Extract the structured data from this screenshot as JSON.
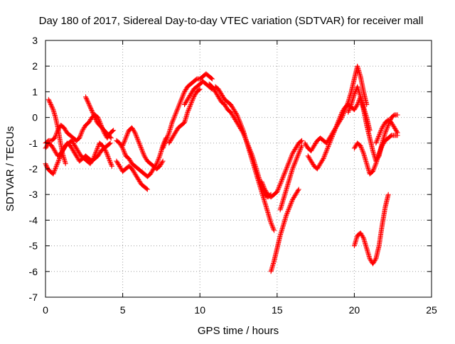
{
  "colors": {
    "series": "#ff0000",
    "grid": "#a0a0a0",
    "axis": "#000000",
    "background": "#ffffff"
  },
  "chart_data": {
    "type": "scatter",
    "title": "Day 180 of 2017, Sidereal Day-to-day VTEC variation (SDTVAR) for receiver mall",
    "xlabel": "GPS time / hours",
    "ylabel": "SDTVAR / TECUs",
    "xlim": [
      0,
      25
    ],
    "ylim": [
      -7,
      3
    ],
    "xticks": [
      0,
      5,
      10,
      15,
      20,
      25
    ],
    "yticks": [
      -7,
      -6,
      -5,
      -4,
      -3,
      -2,
      -1,
      0,
      1,
      2,
      3
    ],
    "grid": true,
    "legend": "none",
    "marker": "plus",
    "series": [
      {
        "x": [
          0.0,
          0.2,
          0.4,
          0.6,
          0.8,
          1.0,
          1.2,
          1.4,
          1.6,
          1.8,
          2.0,
          2.2,
          2.4,
          2.6,
          2.8,
          3.0,
          3.2,
          3.4,
          3.6,
          3.8,
          4.0,
          4.2,
          4.4
        ],
        "values": [
          -1.0,
          -0.9,
          -0.9,
          -0.8,
          -0.5,
          -0.3,
          -0.4,
          -0.6,
          -0.7,
          -0.8,
          -0.9,
          -0.8,
          -0.5,
          -0.3,
          -0.2,
          0.0,
          0.1,
          0.0,
          -0.3,
          -0.6,
          -0.8,
          -0.6,
          -0.5
        ]
      },
      {
        "x": [
          0.0,
          0.2,
          0.4,
          0.6,
          0.8,
          1.0,
          1.2,
          1.4,
          1.6,
          1.8,
          2.0,
          2.2,
          2.4,
          2.6,
          2.8,
          3.0,
          3.2,
          3.4,
          3.6,
          3.8,
          4.0,
          4.2
        ],
        "values": [
          -1.2,
          -1.0,
          -1.1,
          -1.3,
          -1.5,
          -1.4,
          -1.2,
          -1.0,
          -1.1,
          -1.3,
          -1.5,
          -1.7,
          -1.6,
          -1.5,
          -1.6,
          -1.7,
          -1.6,
          -1.5,
          -1.3,
          -1.2,
          -1.1,
          -1.0
        ]
      },
      {
        "x": [
          0.0,
          0.15,
          0.3,
          0.5,
          0.7,
          0.9,
          1.1,
          1.3,
          1.5,
          1.7,
          1.9,
          2.1,
          2.3,
          2.5,
          2.7,
          2.9,
          3.1,
          3.3,
          3.5,
          3.7,
          3.9,
          4.1,
          4.3
        ],
        "values": [
          -1.8,
          -2.0,
          -2.1,
          -2.2,
          -1.9,
          -1.6,
          -1.3,
          -1.1,
          -1.0,
          -0.9,
          -1.1,
          -1.3,
          -1.5,
          -1.6,
          -1.7,
          -1.8,
          -1.6,
          -1.3,
          -1.0,
          -1.1,
          -1.3,
          -1.6,
          -1.9
        ]
      },
      {
        "x": [
          0.2,
          0.35,
          0.5,
          0.65,
          0.8,
          0.95,
          1.1,
          1.3
        ],
        "values": [
          0.7,
          0.5,
          0.3,
          0.0,
          -0.4,
          -0.9,
          -1.4,
          -1.8
        ]
      },
      {
        "x": [
          2.6,
          2.75,
          2.9,
          3.05,
          3.2,
          3.35,
          3.5,
          3.65,
          3.8,
          3.95,
          4.1,
          4.25
        ],
        "values": [
          0.8,
          0.6,
          0.4,
          0.2,
          0.0,
          -0.2,
          -0.3,
          -0.4,
          -0.5,
          -0.6,
          -0.7,
          -0.8
        ]
      },
      {
        "x": [
          4.6,
          4.8,
          5.0,
          5.2,
          5.4,
          5.6,
          5.8,
          6.0,
          6.2,
          6.4,
          6.6,
          6.8,
          7.0,
          7.2,
          7.4,
          7.6,
          7.8
        ],
        "values": [
          -0.9,
          -1.0,
          -1.2,
          -1.5,
          -1.6,
          -1.8,
          -1.9,
          -2.0,
          -2.1,
          -2.2,
          -2.3,
          -2.2,
          -2.0,
          -1.8,
          -1.5,
          -1.1,
          -0.8
        ]
      },
      {
        "x": [
          4.6,
          4.8,
          5.0,
          5.2,
          5.4,
          5.6,
          5.8,
          6.0,
          6.2,
          6.4,
          6.6
        ],
        "values": [
          -1.7,
          -1.9,
          -2.1,
          -2.0,
          -1.9,
          -2.0,
          -2.2,
          -2.4,
          -2.6,
          -2.7,
          -2.8
        ]
      },
      {
        "x": [
          5.0,
          5.2,
          5.4,
          5.6,
          5.8,
          6.0,
          6.2,
          6.4,
          6.6,
          6.8,
          7.0,
          7.2,
          7.4,
          7.6
        ],
        "values": [
          -1.1,
          -0.8,
          -0.5,
          -0.4,
          -0.6,
          -0.9,
          -1.2,
          -1.5,
          -1.7,
          -1.8,
          -1.9,
          -2.0,
          -1.9,
          -1.7
        ]
      },
      {
        "x": [
          7.6,
          7.8,
          8.0,
          8.2,
          8.4,
          8.6,
          8.8,
          9.0,
          9.2,
          9.4,
          9.6,
          9.8,
          10.0,
          10.2,
          10.4,
          10.6,
          10.8
        ],
        "values": [
          -1.2,
          -0.9,
          -0.6,
          -0.2,
          0.1,
          0.4,
          0.7,
          1.0,
          1.2,
          1.3,
          1.4,
          1.5,
          1.5,
          1.6,
          1.7,
          1.6,
          1.5
        ]
      },
      {
        "x": [
          8.0,
          8.2,
          8.4,
          8.6,
          8.8,
          9.0,
          9.2,
          9.4,
          9.6,
          9.8,
          10.0
        ],
        "values": [
          -1.0,
          -0.8,
          -0.6,
          -0.4,
          -0.3,
          -0.2,
          0.2,
          0.5,
          0.8,
          1.0,
          1.1
        ]
      },
      {
        "x": [
          9.0,
          9.2,
          9.4,
          9.6,
          9.8,
          10.0,
          10.2,
          10.4,
          10.6,
          10.8
        ],
        "values": [
          0.5,
          0.7,
          0.9,
          1.1,
          1.2,
          1.3,
          1.4,
          1.3,
          1.2,
          1.1
        ]
      },
      {
        "x": [
          10.6,
          10.8,
          11.0,
          11.2,
          11.4,
          11.6,
          11.8,
          12.0,
          12.2,
          12.4,
          12.6,
          12.8,
          13.0,
          13.2,
          13.4,
          13.6,
          13.8,
          14.0,
          14.2,
          14.4,
          14.6
        ],
        "values": [
          1.3,
          1.2,
          1.0,
          0.8,
          0.6,
          0.5,
          0.3,
          0.2,
          0.0,
          -0.2,
          -0.4,
          -0.6,
          -0.9,
          -1.2,
          -1.5,
          -1.9,
          -2.3,
          -2.7,
          -3.0,
          -3.1,
          -3.0
        ]
      },
      {
        "x": [
          11.0,
          11.2,
          11.4,
          11.6,
          11.8,
          12.0,
          12.2,
          12.4,
          12.6,
          12.8,
          13.0,
          13.2,
          13.4,
          13.6,
          13.8,
          14.0,
          14.2,
          14.4,
          14.6,
          14.8
        ],
        "values": [
          1.2,
          1.1,
          0.9,
          0.7,
          0.6,
          0.5,
          0.3,
          0.1,
          -0.2,
          -0.5,
          -0.9,
          -1.3,
          -1.7,
          -2.1,
          -2.5,
          -2.9,
          -3.3,
          -3.7,
          -4.1,
          -4.4
        ]
      },
      {
        "x": [
          14.0,
          14.2,
          14.4,
          14.6,
          14.8,
          15.0,
          15.2,
          15.4,
          15.6,
          15.8,
          16.0,
          16.2,
          16.4,
          16.6
        ],
        "values": [
          -2.5,
          -2.8,
          -3.0,
          -3.1,
          -3.0,
          -2.9,
          -2.6,
          -2.3,
          -2.0,
          -1.7,
          -1.4,
          -1.2,
          -1.0,
          -0.9
        ]
      },
      {
        "x": [
          14.6,
          14.8,
          15.0,
          15.2,
          15.4,
          15.6,
          15.8,
          16.0,
          16.2,
          16.4
        ],
        "values": [
          -6.0,
          -5.6,
          -5.1,
          -4.6,
          -4.2,
          -3.8,
          -3.5,
          -3.2,
          -3.0,
          -2.8
        ]
      },
      {
        "x": [
          15.2,
          15.4,
          15.6,
          15.8,
          16.0,
          16.2,
          16.4,
          16.6
        ],
        "values": [
          -3.6,
          -3.2,
          -2.8,
          -2.4,
          -2.0,
          -1.7,
          -1.4,
          -1.1
        ]
      },
      {
        "x": [
          16.8,
          17.0,
          17.2,
          17.4,
          17.6,
          17.8,
          18.0,
          18.2,
          18.4,
          18.6,
          18.8,
          19.0,
          19.2,
          19.4,
          19.6,
          19.8,
          20.0,
          20.2,
          20.4,
          20.6,
          20.8
        ],
        "values": [
          -1.0,
          -1.2,
          -1.3,
          -1.1,
          -0.9,
          -0.8,
          -0.9,
          -1.0,
          -0.8,
          -0.6,
          -0.4,
          -0.2,
          0.0,
          0.3,
          0.6,
          1.0,
          1.5,
          2.0,
          1.6,
          1.0,
          0.5
        ]
      },
      {
        "x": [
          17.0,
          17.2,
          17.4,
          17.6,
          17.8,
          18.0,
          18.2,
          18.4,
          18.6,
          18.8,
          19.0,
          19.2,
          19.4,
          19.6,
          19.8,
          20.0,
          20.2,
          20.4,
          20.6,
          20.8,
          21.0
        ],
        "values": [
          -1.5,
          -1.7,
          -1.9,
          -2.0,
          -1.8,
          -1.6,
          -1.3,
          -1.0,
          -0.7,
          -0.4,
          -0.1,
          0.2,
          0.4,
          0.5,
          0.4,
          0.3,
          0.5,
          0.8,
          0.4,
          0.0,
          -0.5
        ]
      },
      {
        "x": [
          19.6,
          19.8,
          20.0,
          20.2,
          20.4,
          20.6,
          20.8,
          21.0,
          21.2,
          21.4,
          21.6,
          21.8,
          22.0,
          22.2,
          22.4,
          22.6,
          22.8
        ],
        "values": [
          0.2,
          0.5,
          0.9,
          1.2,
          0.8,
          0.3,
          -0.3,
          -0.8,
          -1.3,
          -1.7,
          -1.5,
          -1.0,
          -0.6,
          -0.3,
          0.0,
          0.1,
          0.1
        ]
      },
      {
        "x": [
          20.0,
          20.2,
          20.4,
          20.6,
          20.8,
          21.0,
          21.2,
          21.4,
          21.6,
          21.8,
          22.0,
          22.2,
          22.4,
          22.6,
          22.8
        ],
        "values": [
          -1.2,
          -1.0,
          -1.1,
          -1.4,
          -1.8,
          -2.2,
          -2.1,
          -1.8,
          -1.4,
          -1.1,
          -0.9,
          -0.8,
          -0.7,
          -0.7,
          -0.7
        ]
      },
      {
        "x": [
          20.0,
          20.2,
          20.4,
          20.6,
          20.8,
          21.0,
          21.2,
          21.4,
          21.6,
          21.8,
          22.0,
          22.2
        ],
        "values": [
          -5.0,
          -4.6,
          -4.5,
          -4.7,
          -5.1,
          -5.5,
          -5.7,
          -5.5,
          -5.0,
          -4.2,
          -3.5,
          -3.0
        ]
      },
      {
        "x": [
          21.4,
          21.6,
          21.8,
          22.0,
          22.2,
          22.4,
          22.6,
          22.8
        ],
        "values": [
          -1.0,
          -0.7,
          -0.4,
          -0.2,
          -0.1,
          -0.2,
          -0.4,
          -0.6
        ]
      }
    ]
  }
}
